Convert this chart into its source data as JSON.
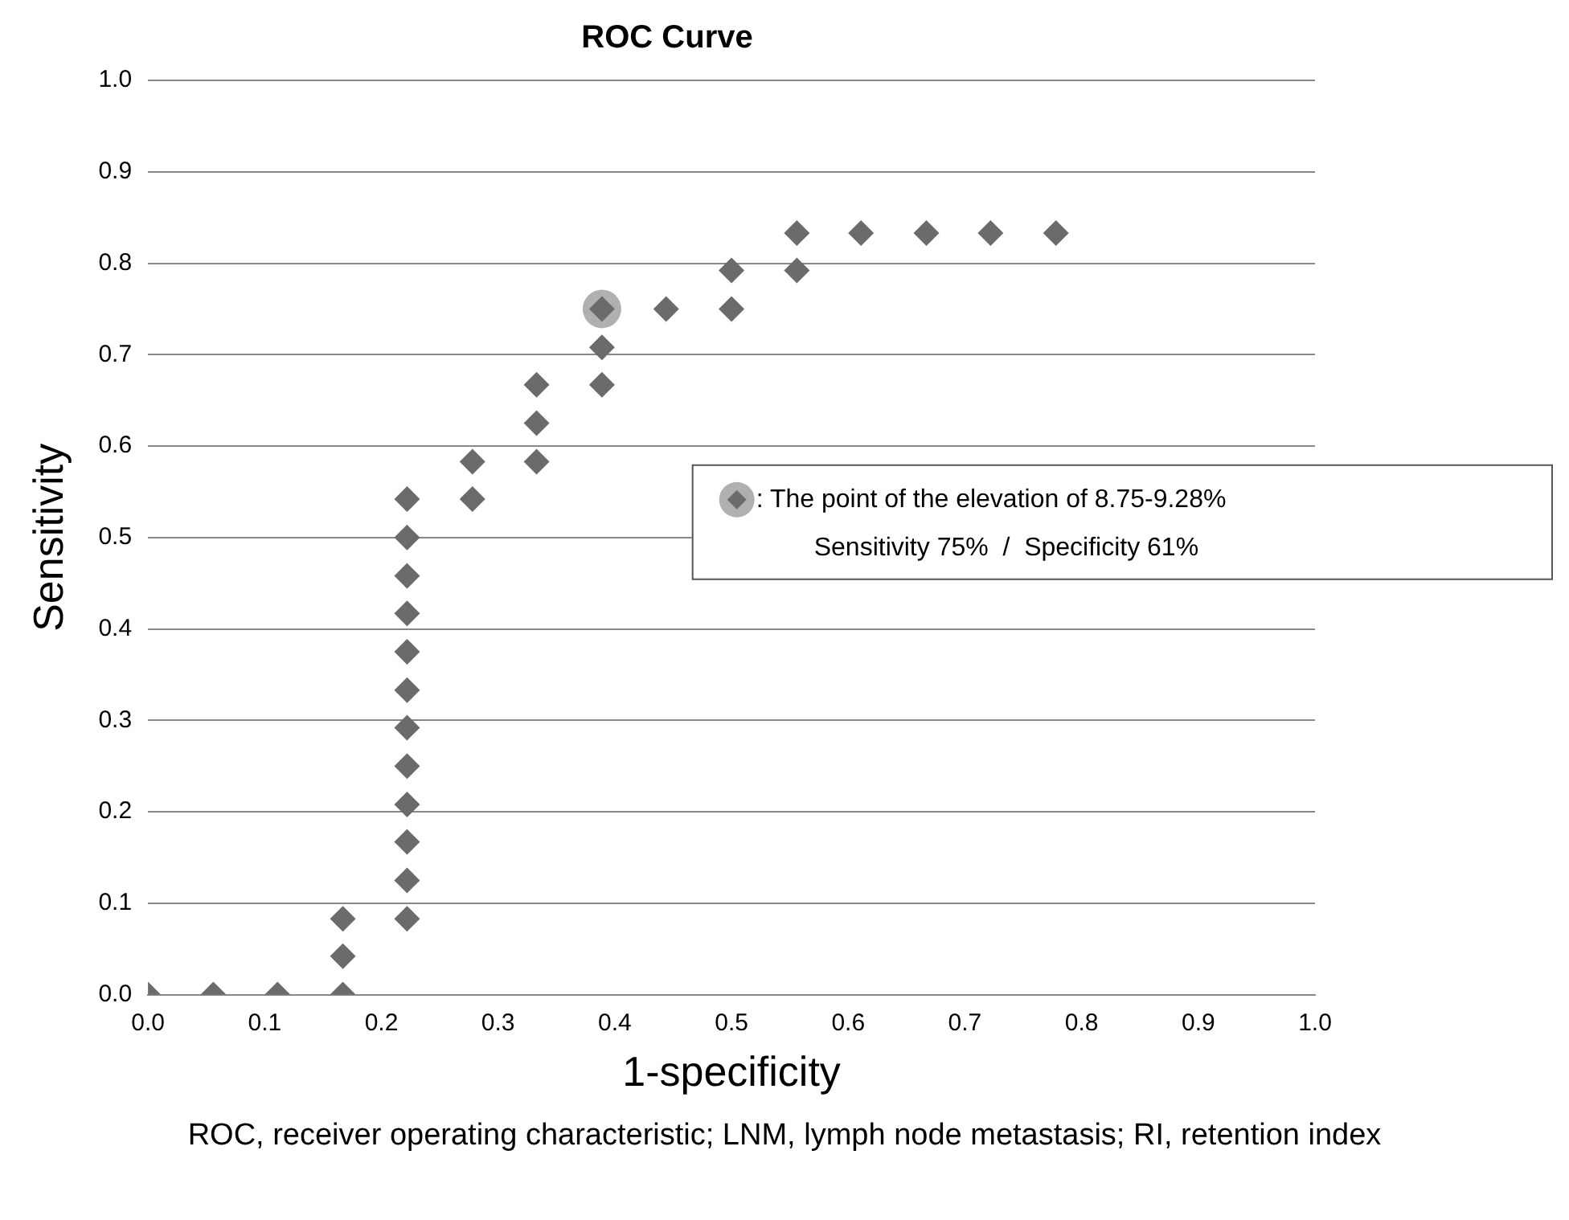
{
  "chart_data": {
    "type": "scatter",
    "title": "ROC Curve",
    "xlabel": "1-specificity",
    "ylabel": "Sensitivity",
    "xlim": [
      0,
      1
    ],
    "xticks": [
      {
        "value": 0,
        "label": "0.0"
      },
      {
        "value": 0.1,
        "label": "0.1"
      },
      {
        "value": 0.2,
        "label": "0.2"
      },
      {
        "value": 0.3,
        "label": "0.3"
      },
      {
        "value": 0.4,
        "label": "0.4"
      },
      {
        "value": 0.5,
        "label": "0.5"
      },
      {
        "value": 0.6,
        "label": "0.6"
      },
      {
        "value": 0.7,
        "label": "0.7"
      },
      {
        "value": 0.8,
        "label": "0.8"
      },
      {
        "value": 0.9,
        "label": "0.9"
      },
      {
        "value": 1,
        "label": "1.0"
      }
    ],
    "ylim": [
      0,
      1
    ],
    "yticks": [
      {
        "value": 0,
        "label": "0.0"
      },
      {
        "value": 0.1,
        "label": "0.1"
      },
      {
        "value": 0.2,
        "label": "0.2"
      },
      {
        "value": 0.3,
        "label": "0.3"
      },
      {
        "value": 0.4,
        "label": "0.4"
      },
      {
        "value": 0.5,
        "label": "0.5"
      },
      {
        "value": 0.6,
        "label": "0.6"
      },
      {
        "value": 0.7,
        "label": "0.7"
      },
      {
        "value": 0.8,
        "label": "0.8"
      },
      {
        "value": 0.9,
        "label": "0.9"
      },
      {
        "value": 1,
        "label": "1.0"
      }
    ],
    "grid": "y",
    "legend": "right",
    "series": [
      {
        "color": "#6b6b6b",
        "marker": "diamond",
        "x": [
          0,
          0.056,
          0.111,
          0.167,
          0.167,
          0.167,
          0.222,
          0.222,
          0.222,
          0.222,
          0.222,
          0.222,
          0.222,
          0.222,
          0.222,
          0.222,
          0.222,
          0.222,
          0.278,
          0.278,
          0.333,
          0.333,
          0.333,
          0.389,
          0.389,
          0.389,
          0.444,
          0.5,
          0.5,
          0.556,
          0.556,
          0.611,
          0.667,
          0.722,
          0.778
        ],
        "values": [
          0,
          0,
          0,
          0,
          0.042,
          0.083,
          0.083,
          0.125,
          0.167,
          0.208,
          0.25,
          0.292,
          0.333,
          0.375,
          0.417,
          0.458,
          0.5,
          0.542,
          0.542,
          0.583,
          0.583,
          0.625,
          0.667,
          0.667,
          0.708,
          0.75,
          0.75,
          0.75,
          0.792,
          0.792,
          0.833,
          0.833,
          0.833,
          0.833,
          0.833
        ]
      },
      {
        "name": ": The point of the elevation of 8.75-9.28%",
        "color": "#b0b0b0",
        "marker": "circle",
        "x": [
          0.389
        ],
        "values": [
          0.75
        ]
      }
    ],
    "annotations": [
      "Sensitivity 75%  /  Specificity 61%",
      "ROC, receiver operating characteristic; LNM, lymph node metastasis; RI, retention index"
    ]
  }
}
